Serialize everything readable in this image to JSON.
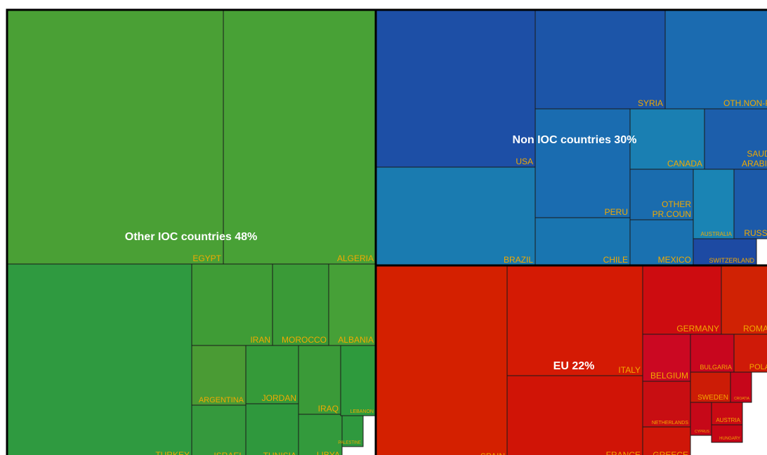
{
  "chart_data": {
    "type": "treemap",
    "groups": [
      {
        "label": "Other IOC countries 48%",
        "countries": [
          {
            "name": "EGYPT",
            "color": "#4aa035"
          },
          {
            "name": "ALGERIA",
            "color": "#48a136"
          },
          {
            "name": "TURKEY",
            "color": "#2f9a40"
          },
          {
            "name": "IRAN",
            "color": "#3f9c36"
          },
          {
            "name": "MOROCCO",
            "color": "#3a9a37"
          },
          {
            "name": "ALBANIA",
            "color": "#46a037"
          },
          {
            "name": "ARGENTINA",
            "color": "#4a9b34"
          },
          {
            "name": "ISRAEL",
            "color": "#35993d"
          },
          {
            "name": "JORDAN",
            "color": "#359a39"
          },
          {
            "name": "TUNISIA",
            "color": "#2f983d"
          },
          {
            "name": "IRAQ",
            "color": "#3a9a38"
          },
          {
            "name": "LIBYA",
            "color": "#339a3c"
          },
          {
            "name": "LEBANON",
            "color": "#2e9a3d"
          },
          {
            "name": "PALESTINE",
            "color": "#2f993e"
          }
        ]
      },
      {
        "label": "Non IOC countries 30%",
        "countries": [
          {
            "name": "USA",
            "color": "#1d4fa6"
          },
          {
            "name": "BRAZIL",
            "color": "#1a7bb0"
          },
          {
            "name": "SYRIA",
            "color": "#1c55a8"
          },
          {
            "name": "OTH.NON-PROD",
            "color": "#1b6bb0"
          },
          {
            "name": "PERU",
            "color": "#1a6cb0"
          },
          {
            "name": "CHILE",
            "color": "#1975b0"
          },
          {
            "name": "CANADA",
            "color": "#1a7fb2"
          },
          {
            "name": "SAUDI ARABIA",
            "color": "#1c5eab"
          },
          {
            "name": "OTHER PR.COUN",
            "color": "#1a6cae"
          },
          {
            "name": "MEXICO",
            "color": "#1a71b0"
          },
          {
            "name": "AUSTRALIA",
            "color": "#1a84b4"
          },
          {
            "name": "RUSSIA",
            "color": "#1c5aa9"
          },
          {
            "name": "SWITZERLAND",
            "color": "#1d4aa3"
          }
        ]
      },
      {
        "label": "EU 22%",
        "countries": [
          {
            "name": "SPAIN",
            "color": "#d42000"
          },
          {
            "name": "ITALY",
            "color": "#d41a04"
          },
          {
            "name": "FRANCE",
            "color": "#d01406"
          },
          {
            "name": "GERMANY",
            "color": "#cd0c10"
          },
          {
            "name": "ROMANIA",
            "color": "#d02204"
          },
          {
            "name": "BELGIUM",
            "color": "#cb0822"
          },
          {
            "name": "NETHERLANDS",
            "color": "#c80e12"
          },
          {
            "name": "GREECE",
            "color": "#cf1608"
          },
          {
            "name": "BULGARIA",
            "color": "#c8061e"
          },
          {
            "name": "POLAND",
            "color": "#cf1a08"
          },
          {
            "name": "SWEDEN",
            "color": "#cc1c06"
          },
          {
            "name": "CROATIA",
            "color": "#c6061a"
          },
          {
            "name": "CYPRUS",
            "color": "#c60818"
          },
          {
            "name": "AUSTRIA",
            "color": "#c90a14"
          },
          {
            "name": "HUNGARY",
            "color": "#c40616"
          }
        ]
      }
    ]
  }
}
